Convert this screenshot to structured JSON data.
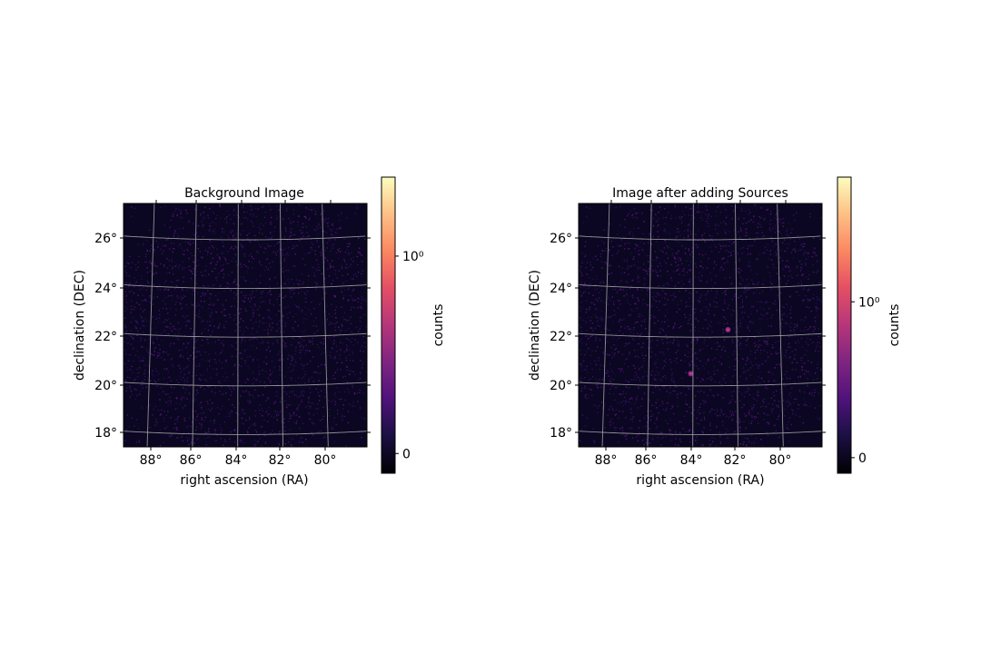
{
  "chart_data": [
    {
      "type": "heatmap",
      "title": "Background Image",
      "xlabel": "right ascension (RA)",
      "ylabel": "declination (DEC)",
      "x_ticks": [
        "88°",
        "86°",
        "84°",
        "82°",
        "80°"
      ],
      "y_ticks": [
        "26°",
        "24°",
        "22°",
        "20°",
        "18°"
      ],
      "grid": true,
      "colormap": "magma",
      "colorbar": {
        "label": "counts",
        "ticks": [
          {
            "value": 0,
            "label": "0"
          },
          {
            "value": 1,
            "label": "10⁰"
          }
        ],
        "range": [
          -0.1,
          1.4
        ]
      },
      "sources": []
    },
    {
      "type": "heatmap",
      "title": "Image after adding Sources",
      "xlabel": "right ascension (RA)",
      "ylabel": "declination (DEC)",
      "x_ticks": [
        "88°",
        "86°",
        "84°",
        "82°",
        "80°"
      ],
      "y_ticks": [
        "26°",
        "24°",
        "22°",
        "20°",
        "18°"
      ],
      "grid": true,
      "colormap": "magma",
      "colorbar": {
        "label": "counts",
        "ticks": [
          {
            "value": 0,
            "label": "0"
          },
          {
            "value": 1,
            "label": "10⁰"
          }
        ],
        "range": [
          -0.1,
          1.8
        ]
      },
      "sources": [
        {
          "ra": 82.4,
          "dec": 22.3
        },
        {
          "ra": 84.1,
          "dec": 20.5
        }
      ]
    }
  ]
}
